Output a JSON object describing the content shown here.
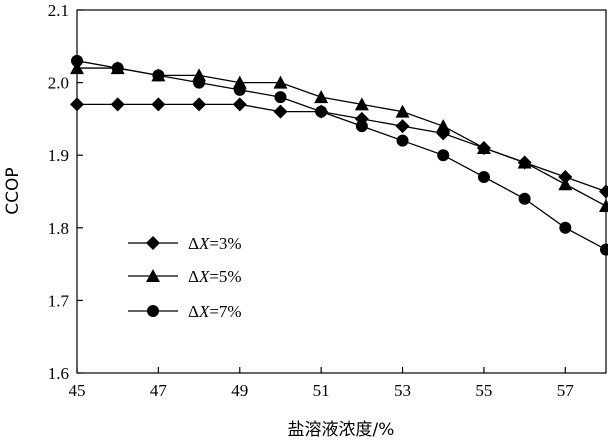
{
  "chart_data": {
    "type": "line",
    "xlabel": "盐溶液浓度/%",
    "ylabel": "CCOP",
    "xlim": [
      45,
      58
    ],
    "ylim": [
      1.6,
      2.1
    ],
    "x_ticks": [
      45,
      47,
      49,
      51,
      53,
      55,
      57
    ],
    "x_tick_labels": [
      "45",
      "47",
      "49",
      "51",
      "53",
      "55",
      "57"
    ],
    "y_ticks": [
      1.6,
      1.7,
      1.8,
      1.9,
      2.0,
      2.1
    ],
    "y_tick_labels": [
      "1.6",
      "1.7",
      "1.8",
      "1.9",
      "2.0",
      "2.1"
    ],
    "x": [
      45,
      46,
      47,
      48,
      49,
      50,
      51,
      52,
      53,
      54,
      55,
      56,
      57,
      58
    ],
    "legend_position": "left-lower",
    "grid": false,
    "series": [
      {
        "legend_prefix": "Δ",
        "legend_var": "X",
        "legend_suffix": "=3%",
        "marker": "diamond",
        "values": [
          1.97,
          1.97,
          1.97,
          1.97,
          1.97,
          1.96,
          1.96,
          1.95,
          1.94,
          1.93,
          1.91,
          1.89,
          1.87,
          1.85
        ]
      },
      {
        "legend_prefix": "Δ",
        "legend_var": "X",
        "legend_suffix": "=5%",
        "marker": "triangle",
        "values": [
          2.02,
          2.02,
          2.01,
          2.01,
          2.0,
          2.0,
          1.98,
          1.97,
          1.96,
          1.94,
          1.91,
          1.89,
          1.86,
          1.83
        ]
      },
      {
        "legend_prefix": "Δ",
        "legend_var": "X",
        "legend_suffix": "=7%",
        "marker": "circle",
        "values": [
          2.03,
          2.02,
          2.01,
          2.0,
          1.99,
          1.98,
          1.96,
          1.94,
          1.92,
          1.9,
          1.87,
          1.84,
          1.8,
          1.77
        ]
      }
    ]
  }
}
